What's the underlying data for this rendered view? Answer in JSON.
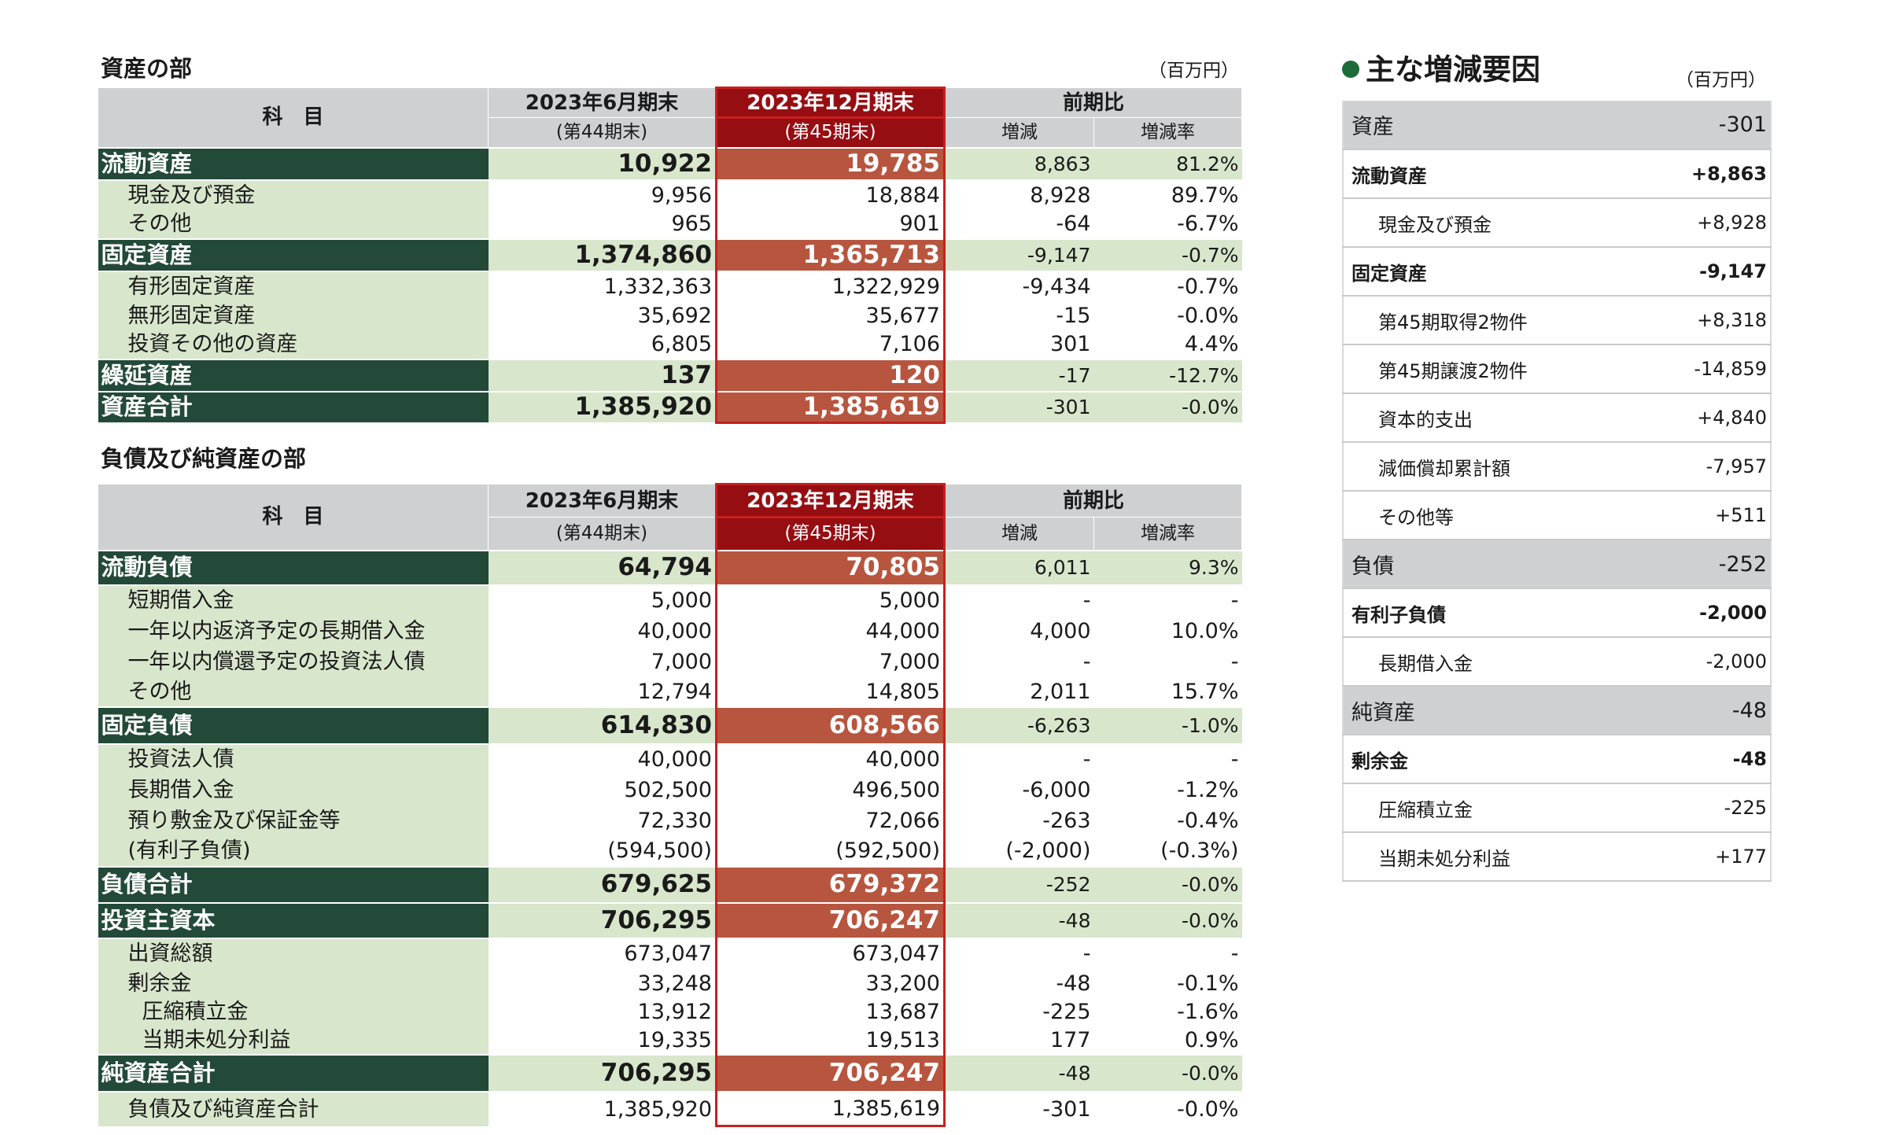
{
  "assets": {
    "title": "資産の部",
    "unit": "（百万円）",
    "header": {
      "subject": "科　目",
      "prev": "2023年6月期末",
      "prev_sub": "(第44期末)",
      "cur": "2023年12月期末",
      "cur_sub": "(第45期末)",
      "compare": "前期比",
      "change": "増減",
      "rate": "増減率"
    },
    "rows": [
      {
        "label": "流動資産",
        "prev": "10,922",
        "cur": "19,785",
        "chg": "8,863",
        "rate": "81.2%"
      },
      {
        "label": "現金及び預金",
        "prev": "9,956",
        "cur": "18,884",
        "chg": "8,928",
        "rate": "89.7%"
      },
      {
        "label": "その他",
        "prev": "965",
        "cur": "901",
        "chg": "-64",
        "rate": "-6.7%"
      },
      {
        "label": "固定資産",
        "prev": "1,374,860",
        "cur": "1,365,713",
        "chg": "-9,147",
        "rate": "-0.7%"
      },
      {
        "label": "有形固定資産",
        "prev": "1,332,363",
        "cur": "1,322,929",
        "chg": "-9,434",
        "rate": "-0.7%"
      },
      {
        "label": "無形固定資産",
        "prev": "35,692",
        "cur": "35,677",
        "chg": "-15",
        "rate": "-0.0%"
      },
      {
        "label": "投資その他の資産",
        "prev": "6,805",
        "cur": "7,106",
        "chg": "301",
        "rate": "4.4%"
      },
      {
        "label": "繰延資産",
        "prev": "137",
        "cur": "120",
        "chg": "-17",
        "rate": "-12.7%"
      },
      {
        "label": "資産合計",
        "prev": "1,385,920",
        "cur": "1,385,619",
        "chg": "-301",
        "rate": "-0.0%"
      }
    ]
  },
  "liabilities": {
    "title": "負債及び純資産の部",
    "header": {
      "subject": "科　目",
      "prev": "2023年6月期末",
      "prev_sub": "(第44期末)",
      "cur": "2023年12月期末",
      "cur_sub": "(第45期末)",
      "compare": "前期比",
      "change": "増減",
      "rate": "増減率"
    },
    "rows": [
      {
        "label": "流動負債",
        "prev": "64,794",
        "cur": "70,805",
        "chg": "6,011",
        "rate": "9.3%"
      },
      {
        "label": "短期借入金",
        "prev": "5,000",
        "cur": "5,000",
        "chg": "-",
        "rate": "-"
      },
      {
        "label": "一年以内返済予定の長期借入金",
        "prev": "40,000",
        "cur": "44,000",
        "chg": "4,000",
        "rate": "10.0%"
      },
      {
        "label": "一年以内償還予定の投資法人債",
        "prev": "7,000",
        "cur": "7,000",
        "chg": "-",
        "rate": "-"
      },
      {
        "label": "その他",
        "prev": "12,794",
        "cur": "14,805",
        "chg": "2,011",
        "rate": "15.7%"
      },
      {
        "label": "固定負債",
        "prev": "614,830",
        "cur": "608,566",
        "chg": "-6,263",
        "rate": "-1.0%"
      },
      {
        "label": "投資法人債",
        "prev": "40,000",
        "cur": "40,000",
        "chg": "-",
        "rate": "-"
      },
      {
        "label": "長期借入金",
        "prev": "502,500",
        "cur": "496,500",
        "chg": "-6,000",
        "rate": "-1.2%"
      },
      {
        "label": "預り敷金及び保証金等",
        "prev": "72,330",
        "cur": "72,066",
        "chg": "-263",
        "rate": "-0.4%"
      },
      {
        "label": "(有利子負債)",
        "prev": "(594,500)",
        "cur": "(592,500)",
        "chg": "(-2,000)",
        "rate": "(-0.3%)"
      },
      {
        "label": "負債合計",
        "prev": "679,625",
        "cur": "679,372",
        "chg": "-252",
        "rate": "-0.0%"
      },
      {
        "label": "投資主資本",
        "prev": "706,295",
        "cur": "706,247",
        "chg": "-48",
        "rate": "-0.0%"
      },
      {
        "label": "出資総額",
        "prev": "673,047",
        "cur": "673,047",
        "chg": "-",
        "rate": "-"
      },
      {
        "label": "剰余金",
        "prev": "33,248",
        "cur": "33,200",
        "chg": "-48",
        "rate": "-0.1%"
      },
      {
        "label": "圧縮積立金",
        "prev": "13,912",
        "cur": "13,687",
        "chg": "-225",
        "rate": "-1.6%"
      },
      {
        "label": "当期未処分利益",
        "prev": "19,335",
        "cur": "19,513",
        "chg": "177",
        "rate": "0.9%"
      },
      {
        "label": "純資産合計",
        "prev": "706,295",
        "cur": "706,247",
        "chg": "-48",
        "rate": "-0.0%"
      },
      {
        "label": "負債及び純資産合計",
        "prev": "1,385,920",
        "cur": "1,385,619",
        "chg": "-301",
        "rate": "-0.0%"
      }
    ]
  },
  "factors": {
    "title": "主な増減要因",
    "unit": "（百万円）",
    "rows": [
      {
        "label": "資産",
        "value": "-301"
      },
      {
        "label": "流動資産",
        "value": "+8,863"
      },
      {
        "label": "現金及び預金",
        "value": "+8,928"
      },
      {
        "label": "固定資産",
        "value": "-9,147"
      },
      {
        "label": "第45期取得2物件",
        "value": "+8,318"
      },
      {
        "label": "第45期譲渡2物件",
        "value": "-14,859"
      },
      {
        "label": "資本的支出",
        "value": "+4,840"
      },
      {
        "label": "減価償却累計額",
        "value": "-7,957"
      },
      {
        "label": "その他等",
        "value": "+511"
      },
      {
        "label": "負債",
        "value": "-252"
      },
      {
        "label": "有利子負債",
        "value": "-2,000"
      },
      {
        "label": "長期借入金",
        "value": "-2,000"
      },
      {
        "label": "純資産",
        "value": "-48"
      },
      {
        "label": "剰余金",
        "value": "-48"
      },
      {
        "label": "圧縮積立金",
        "value": "-225"
      },
      {
        "label": "当期未処分利益",
        "value": "+177"
      }
    ]
  },
  "colors": {
    "category_label": "#234a39",
    "current_header": "#960e12",
    "current_category": "#b8553f",
    "light_green": "#d8e6cc",
    "header_grey": "#cfd0d2",
    "bullet": "#1e6b3a"
  }
}
